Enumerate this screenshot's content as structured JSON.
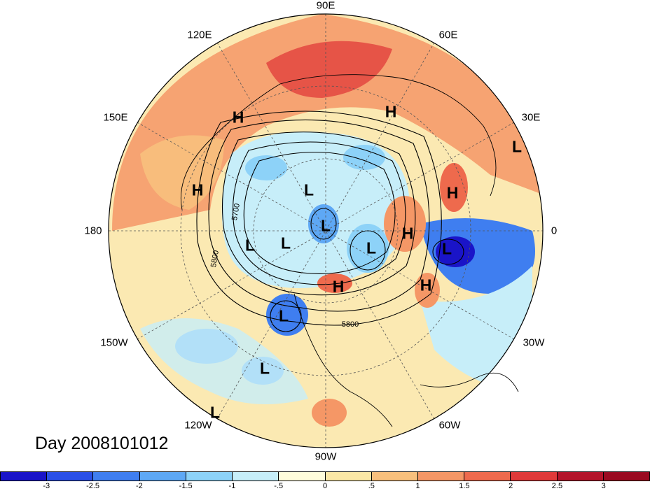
{
  "title": "Day 2008101012",
  "longitude_labels": [
    "90E",
    "60E",
    "30E",
    "0",
    "30W",
    "60W",
    "90W",
    "120W",
    "150W",
    "180",
    "150E",
    "120E"
  ],
  "pressure_systems": [
    "H",
    "H",
    "H",
    "H",
    "H",
    "H",
    "H",
    "L",
    "L",
    "L",
    "L",
    "L",
    "L",
    "L",
    "L",
    "L",
    "L"
  ],
  "contour_labels": [
    "5700",
    "5800",
    "5800"
  ],
  "colorbar": {
    "ticks": [
      "-3",
      "-2.5",
      "-2",
      "-1.5",
      "-1",
      "-.5",
      "0",
      ".5",
      "1",
      "1.5",
      "2",
      "2.5",
      "3"
    ],
    "colors": [
      "#1a14c8",
      "#2a4fe6",
      "#3f7ef0",
      "#5ea8f5",
      "#8dd2f8",
      "#c7eef9",
      "#fffcdb",
      "#fbe7a6",
      "#f8c07d",
      "#f59766",
      "#ee6a4d",
      "#e03a3a",
      "#b3142a",
      "#9a0a20"
    ]
  }
}
